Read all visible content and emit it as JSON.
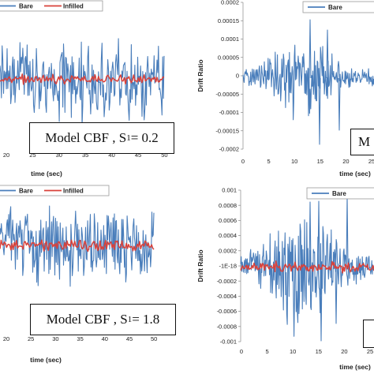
{
  "chart_data": [
    {
      "type": "line",
      "panel": "top-left",
      "xlabel": "time (sec)",
      "xticks": [
        "20",
        "25",
        "30",
        "35",
        "40",
        "45",
        "50"
      ],
      "xlim": [
        16.5,
        50
      ],
      "ylim": [
        -0.0002,
        0.0002
      ],
      "series": [
        {
          "name": "Bare",
          "color": "#4a7ebb",
          "amplitude": 8.5e-05
        },
        {
          "name": "Infilled",
          "color": "#d9413a",
          "amplitude": 1.2e-05
        }
      ],
      "legend": "top",
      "annotation": {
        "prefix": "Model CBF , S",
        "subscript": "1",
        "suffix": " = 0.2"
      }
    },
    {
      "type": "line",
      "panel": "top-right",
      "ylabel": "Drift Ratio",
      "xlabel": "time (sec)",
      "yticks": [
        "0.0002",
        "0.00015",
        "0.0001",
        "0.00005",
        "0",
        "-0.00005",
        "-0.0001",
        "-0.00015",
        "-0.0002"
      ],
      "xticks": [
        "0",
        "5",
        "10",
        "15",
        "20",
        "25"
      ],
      "xlim": [
        0,
        28
      ],
      "ylim": [
        -0.0002,
        0.0002
      ],
      "series": [
        {
          "name": "Bare",
          "color": "#4a7ebb",
          "amplitude": 6e-05
        }
      ],
      "legend": "top",
      "annotation": {
        "text": "M"
      }
    },
    {
      "type": "line",
      "panel": "bottom-left",
      "xlabel": "time (sec)",
      "xticks": [
        "20",
        "25",
        "30",
        "35",
        "40",
        "45",
        "50"
      ],
      "xlim": [
        17,
        50
      ],
      "series": [
        {
          "name": "Bare",
          "color": "#4a7ebb",
          "amplitude": 0.0003
        },
        {
          "name": "Infilled",
          "color": "#d9413a",
          "amplitude": 5e-05
        }
      ],
      "legend": "top",
      "annotation": {
        "prefix": "Model CBF , S",
        "subscript": "1",
        "suffix": " = 1.8"
      }
    },
    {
      "type": "line",
      "panel": "bottom-right",
      "ylabel": "Drift Ratio",
      "xlabel": "time (sec)",
      "yticks": [
        "0.001",
        "0.0008",
        "0.0006",
        "0.0004",
        "0.0002",
        "-1E-18",
        "-0.0002",
        "-0.0004",
        "-0.0006",
        "-0.0008",
        "-0.001"
      ],
      "xticks": [
        "0",
        "5",
        "10",
        "15",
        "20",
        "25"
      ],
      "xlim": [
        0,
        28
      ],
      "ylim": [
        -0.001,
        0.001
      ],
      "series": [
        {
          "name": "Bare",
          "color": "#4a7ebb",
          "amplitude": 0.00025
        },
        {
          "name": "",
          "color": "#d9413a",
          "amplitude": 5e-05
        }
      ],
      "legend": "top",
      "annotation": {
        "text": ""
      }
    }
  ]
}
